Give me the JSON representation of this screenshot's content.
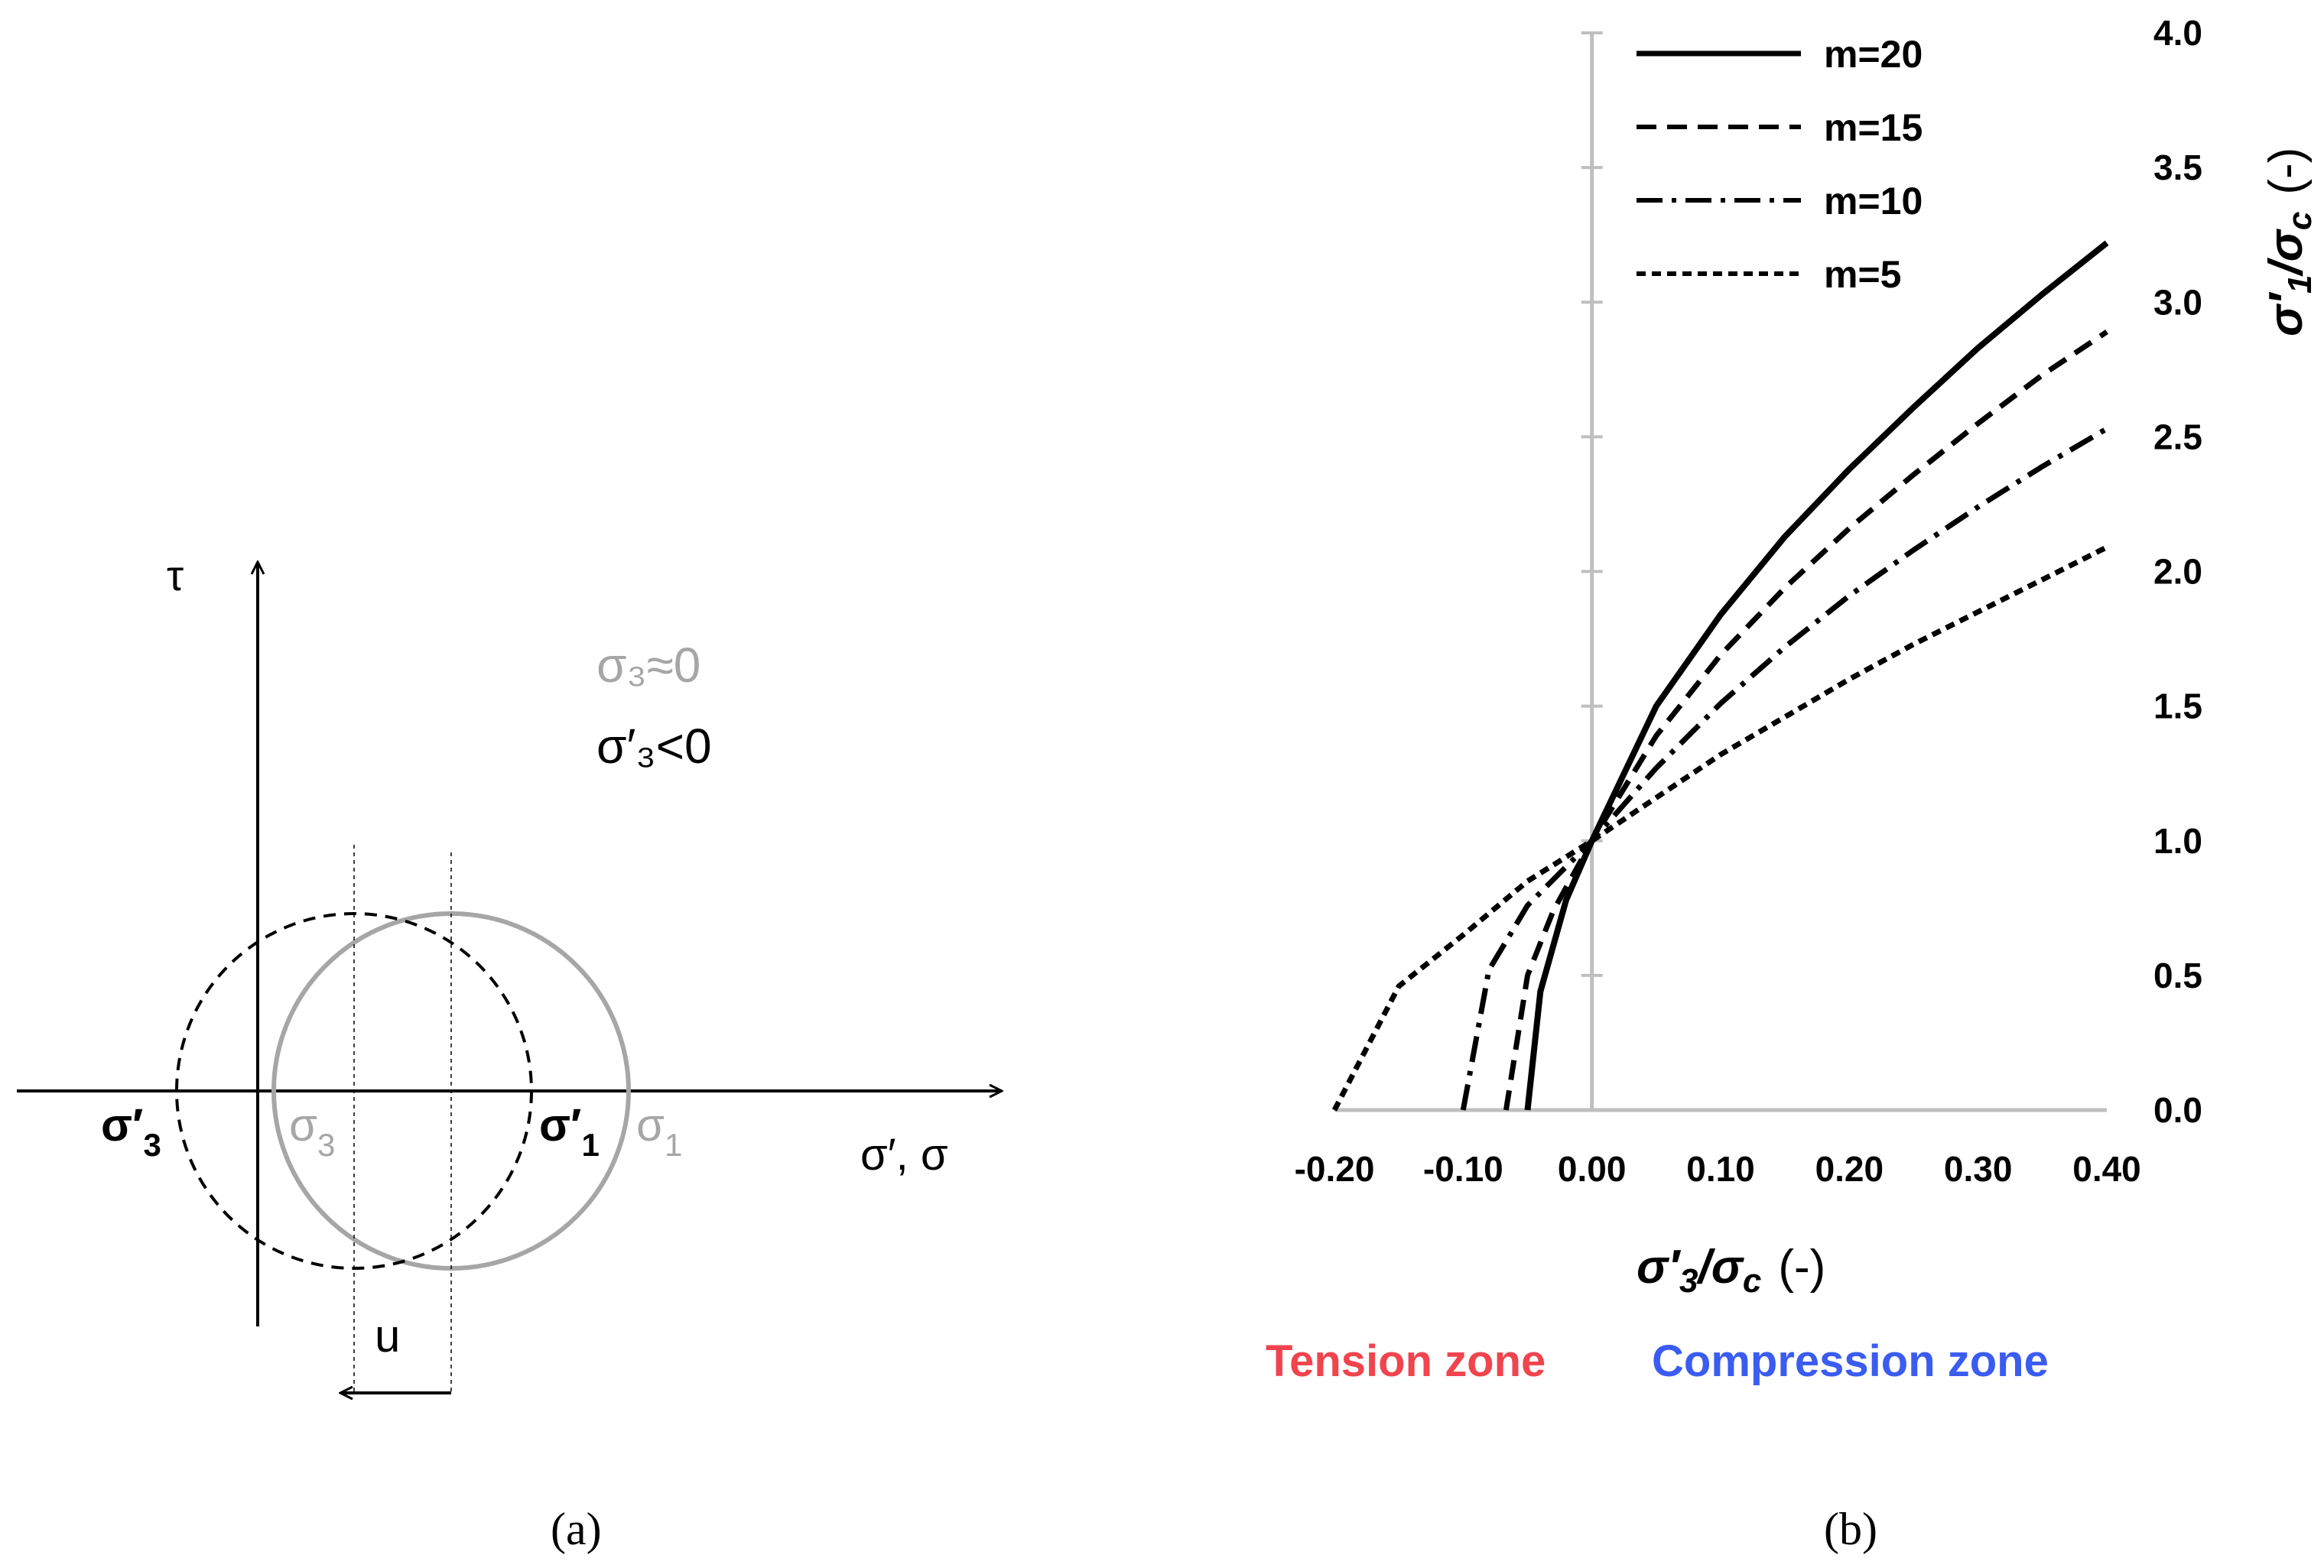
{
  "panel_a": {
    "caption": "(a)",
    "tau_label": "τ",
    "sigma3_approx_label": "σ₃≈0",
    "sigma3_eff_label": "σ′₃<0",
    "sigma_eff3_label": "σ′",
    "sigma_eff3_sub": "3",
    "sigma3_label": "σ",
    "sigma3_sub": "3",
    "sigma_eff1_label": "σ′",
    "sigma_eff1_sub": "1",
    "sigma1_label": "σ",
    "sigma1_sub": "1",
    "x_axis_label": "σ′, σ",
    "u_label": "u",
    "colors": {
      "total": "#a6a6a6",
      "effective": "#000000"
    }
  },
  "panel_b": {
    "caption": "(b)",
    "tension_label": "Tension zone",
    "compression_label": "Compression zone",
    "tension_color": "#f0444e",
    "compression_color": "#3b5cf0"
  },
  "chart_data": {
    "type": "line",
    "xlabel_main": "σ′",
    "xlabel_sub": "3",
    "xlabel_den": "/σ",
    "xlabel_den_sub": "c",
    "xlabel_unit": "(-)",
    "ylabel_main": "σ′",
    "ylabel_sub": "1",
    "ylabel_den": "/σ",
    "ylabel_den_sub": "c",
    "ylabel_unit": "(-)",
    "xlim": [
      -0.2,
      0.4
    ],
    "ylim": [
      0,
      4
    ],
    "xticks": [
      "-0.20",
      "-0.10",
      "0.00",
      "0.10",
      "0.20",
      "0.30",
      "0.40"
    ],
    "yticks": [
      "0.0",
      "0.5",
      "1.0",
      "1.5",
      "2.0",
      "2.5",
      "3.0",
      "3.5",
      "4.0"
    ],
    "legend_position": "top-left",
    "series": [
      {
        "name": "m=20",
        "m": 20,
        "dash": "solid",
        "x": [
          -0.05,
          -0.04,
          -0.02,
          0.0,
          0.05,
          0.1,
          0.15,
          0.2,
          0.25,
          0.3,
          0.35,
          0.4
        ],
        "y": [
          0.0,
          0.44,
          0.78,
          1.0,
          1.5,
          1.84,
          2.13,
          2.38,
          2.61,
          2.83,
          3.03,
          3.22
        ]
      },
      {
        "name": "m=15",
        "m": 15,
        "dash": "dashed",
        "x": [
          -0.0667,
          -0.05,
          -0.03,
          0.0,
          0.05,
          0.1,
          0.15,
          0.2,
          0.25,
          0.3,
          0.35,
          0.4
        ],
        "y": [
          0.0,
          0.5,
          0.74,
          1.0,
          1.39,
          1.69,
          1.94,
          2.16,
          2.36,
          2.55,
          2.73,
          2.89
        ]
      },
      {
        "name": "m=10",
        "m": 10,
        "dash": "dashdot",
        "x": [
          -0.1,
          -0.08,
          -0.05,
          0.0,
          0.05,
          0.1,
          0.15,
          0.2,
          0.25,
          0.3,
          0.35,
          0.4
        ],
        "y": [
          0.0,
          0.52,
          0.76,
          1.0,
          1.27,
          1.51,
          1.72,
          1.91,
          2.08,
          2.24,
          2.39,
          2.53
        ]
      },
      {
        "name": "m=5",
        "m": 5,
        "dash": "short-dash",
        "x": [
          -0.2,
          -0.15,
          -0.1,
          -0.05,
          0.0,
          0.05,
          0.1,
          0.15,
          0.2,
          0.25,
          0.3,
          0.35,
          0.4
        ],
        "y": [
          0.0,
          0.46,
          0.65,
          0.85,
          1.0,
          1.16,
          1.32,
          1.46,
          1.6,
          1.73,
          1.85,
          1.97,
          2.09
        ]
      }
    ]
  }
}
